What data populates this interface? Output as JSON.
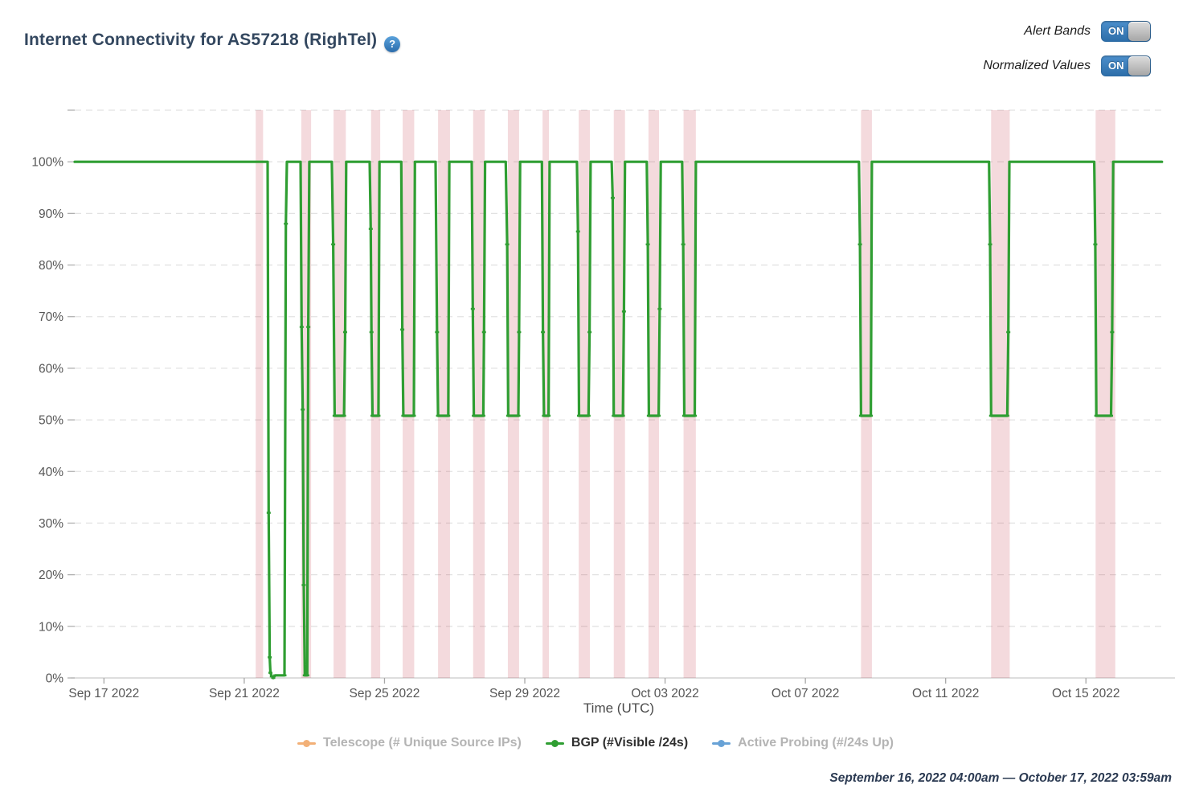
{
  "header": {
    "title": "Internet Connectivity for AS57218 (RighTel)",
    "help_icon": "?",
    "controls": [
      {
        "label": "Alert Bands",
        "state": "ON"
      },
      {
        "label": "Normalized Values",
        "state": "ON"
      }
    ]
  },
  "chart_data": {
    "type": "line",
    "title": "Internet Connectivity for AS57218 (RighTel)",
    "xlabel": "Time (UTC)",
    "ylabel": "",
    "x_unit": "days since September 16, 2022 04:00am UTC",
    "x_range_days": [
      0,
      31.05
    ],
    "ylim": [
      0,
      110
    ],
    "y_ticks": [
      {
        "v": 0,
        "label": "0%"
      },
      {
        "v": 10,
        "label": "10%"
      },
      {
        "v": 20,
        "label": "20%"
      },
      {
        "v": 30,
        "label": "30%"
      },
      {
        "v": 40,
        "label": "40%"
      },
      {
        "v": 50,
        "label": "50%"
      },
      {
        "v": 60,
        "label": "60%"
      },
      {
        "v": 70,
        "label": "70%"
      },
      {
        "v": 80,
        "label": "80%"
      },
      {
        "v": 90,
        "label": "90%"
      },
      {
        "v": 100,
        "label": "100%"
      },
      {
        "v": 110,
        "label": ""
      }
    ],
    "x_ticks": [
      {
        "t": 0.833,
        "label": "Sep 17 2022"
      },
      {
        "t": 4.833,
        "label": "Sep 21 2022"
      },
      {
        "t": 8.833,
        "label": "Sep 25 2022"
      },
      {
        "t": 12.833,
        "label": "Sep 29 2022"
      },
      {
        "t": 16.833,
        "label": "Oct 03 2022"
      },
      {
        "t": 20.833,
        "label": "Oct 07 2022"
      },
      {
        "t": 24.833,
        "label": "Oct 11 2022"
      },
      {
        "t": 28.833,
        "label": "Oct 15 2022"
      }
    ],
    "grid": "horizontal-dashed",
    "alert_bands": {
      "name": "Alert Bands",
      "color": "#c84655",
      "opacity": 0.2,
      "intervals": [
        [
          5.16,
          5.37
        ],
        [
          6.46,
          6.74
        ],
        [
          7.38,
          7.73
        ],
        [
          8.45,
          8.71
        ],
        [
          9.35,
          9.68
        ],
        [
          10.36,
          10.7
        ],
        [
          11.36,
          11.69
        ],
        [
          12.35,
          12.67
        ],
        [
          13.34,
          13.52
        ],
        [
          14.37,
          14.69
        ],
        [
          15.37,
          15.69
        ],
        [
          16.36,
          16.66
        ],
        [
          17.36,
          17.71
        ],
        [
          22.42,
          22.73
        ],
        [
          26.13,
          26.66
        ],
        [
          29.11,
          29.67
        ]
      ]
    },
    "series": [
      {
        "name": "BGP (#Visible /24s)",
        "color": "#2f9e32",
        "points": [
          [
            0,
            100
          ],
          [
            5.5,
            100
          ],
          [
            5.53,
            32
          ],
          [
            5.56,
            4
          ],
          [
            5.58,
            1
          ],
          [
            5.62,
            0.3
          ],
          [
            5.66,
            0
          ],
          [
            5.72,
            0.5
          ],
          [
            5.98,
            0.5
          ],
          [
            6.02,
            88
          ],
          [
            6.05,
            100
          ],
          [
            6.44,
            100
          ],
          [
            6.47,
            68
          ],
          [
            6.5,
            52
          ],
          [
            6.53,
            18
          ],
          [
            6.56,
            0.5
          ],
          [
            6.63,
            0.5
          ],
          [
            6.66,
            68
          ],
          [
            6.69,
            100
          ],
          [
            7.33,
            100
          ],
          [
            7.37,
            84
          ],
          [
            7.41,
            50.8
          ],
          [
            7.68,
            50.8
          ],
          [
            7.71,
            67
          ],
          [
            7.74,
            100
          ],
          [
            8.41,
            100
          ],
          [
            8.44,
            87
          ],
          [
            8.46,
            67
          ],
          [
            8.49,
            50.8
          ],
          [
            8.66,
            50.8
          ],
          [
            8.69,
            100
          ],
          [
            9.31,
            100
          ],
          [
            9.34,
            67.5
          ],
          [
            9.37,
            50.8
          ],
          [
            9.67,
            50.8
          ],
          [
            9.7,
            100
          ],
          [
            10.29,
            100
          ],
          [
            10.33,
            67
          ],
          [
            10.36,
            50.8
          ],
          [
            10.65,
            50.8
          ],
          [
            10.68,
            100
          ],
          [
            11.32,
            100
          ],
          [
            11.35,
            71.5
          ],
          [
            11.38,
            50.8
          ],
          [
            11.65,
            50.8
          ],
          [
            11.67,
            67
          ],
          [
            11.7,
            100
          ],
          [
            12.29,
            100
          ],
          [
            12.33,
            84
          ],
          [
            12.36,
            50.8
          ],
          [
            12.65,
            50.8
          ],
          [
            12.67,
            67
          ],
          [
            12.7,
            100
          ],
          [
            13.32,
            100
          ],
          [
            13.35,
            67
          ],
          [
            13.38,
            50.8
          ],
          [
            13.51,
            50.8
          ],
          [
            13.54,
            100
          ],
          [
            14.32,
            100
          ],
          [
            14.35,
            86.5
          ],
          [
            14.38,
            50.8
          ],
          [
            14.65,
            50.8
          ],
          [
            14.68,
            67
          ],
          [
            14.71,
            100
          ],
          [
            15.31,
            100
          ],
          [
            15.34,
            93
          ],
          [
            15.37,
            50.8
          ],
          [
            15.63,
            50.8
          ],
          [
            15.66,
            71
          ],
          [
            15.69,
            100
          ],
          [
            16.31,
            100
          ],
          [
            16.34,
            84
          ],
          [
            16.37,
            50.8
          ],
          [
            16.65,
            50.8
          ],
          [
            16.68,
            71.5
          ],
          [
            16.71,
            100
          ],
          [
            17.32,
            100
          ],
          [
            17.35,
            84
          ],
          [
            17.38,
            50.8
          ],
          [
            17.68,
            50.8
          ],
          [
            17.71,
            100
          ],
          [
            22.36,
            100
          ],
          [
            22.39,
            84
          ],
          [
            22.42,
            50.8
          ],
          [
            22.7,
            50.8
          ],
          [
            22.73,
            100
          ],
          [
            26.07,
            100
          ],
          [
            26.1,
            84
          ],
          [
            26.13,
            50.8
          ],
          [
            26.59,
            50.8
          ],
          [
            26.62,
            67
          ],
          [
            26.65,
            100
          ],
          [
            29.07,
            100
          ],
          [
            29.1,
            84
          ],
          [
            29.13,
            50.8
          ],
          [
            29.55,
            50.8
          ],
          [
            29.58,
            67
          ],
          [
            29.61,
            100
          ],
          [
            31.0,
            100
          ]
        ]
      }
    ],
    "legend_position": "bottom",
    "legend": [
      {
        "label": "Telescope (# Unique Source IPs)",
        "color": "#f2b077",
        "active": false
      },
      {
        "label": "BGP (#Visible /24s)",
        "color": "#2f9e32",
        "active": true
      },
      {
        "label": "Active Probing (#/24s Up)",
        "color": "#68a2d6",
        "active": false
      }
    ]
  },
  "footer": {
    "date_range": "September 16, 2022 04:00am — October 17, 2022 03:59am"
  }
}
